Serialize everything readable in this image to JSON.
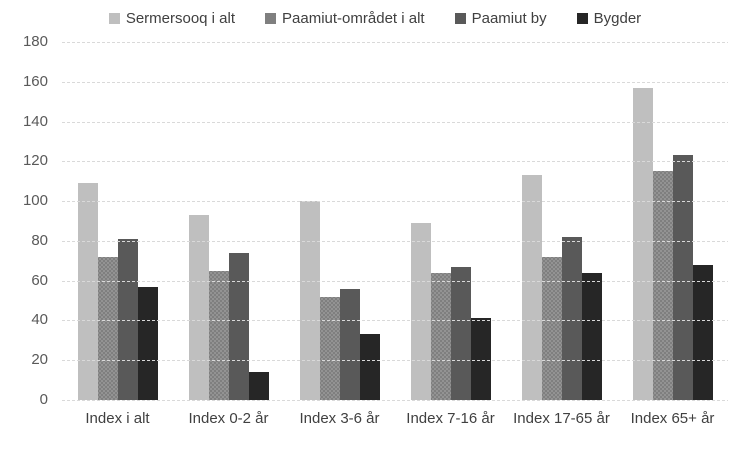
{
  "chart_data": {
    "type": "bar",
    "title": "",
    "categories": [
      "Index i alt",
      "Index 0-2 år",
      "Index 3-6 år",
      "Index 7-16 år",
      "Index 17-65 år",
      "Index 65+ år"
    ],
    "series": [
      {
        "name": "Sermersooq i alt",
        "color": "#bfbfbf",
        "pattern": "none",
        "values": [
          109,
          93,
          100,
          89,
          113,
          157
        ]
      },
      {
        "name": "Paamiut-området i alt",
        "color": "#7f7f7f",
        "pattern": "dots",
        "values": [
          72,
          65,
          52,
          64,
          72,
          115
        ]
      },
      {
        "name": "Paamiut by",
        "color": "#595959",
        "pattern": "none",
        "values": [
          81,
          74,
          56,
          67,
          82,
          123
        ]
      },
      {
        "name": "Bygder",
        "color": "#262626",
        "pattern": "none",
        "values": [
          57,
          14,
          33,
          41,
          64,
          68
        ]
      }
    ],
    "ylim": [
      0,
      180
    ],
    "ytick_step": 20,
    "grid": true,
    "gridline_style": "dotted",
    "gridline_color": "#d9d9d9",
    "axis_text_color": "#595959",
    "legend_position": "top",
    "xlabel": "",
    "ylabel": ""
  }
}
